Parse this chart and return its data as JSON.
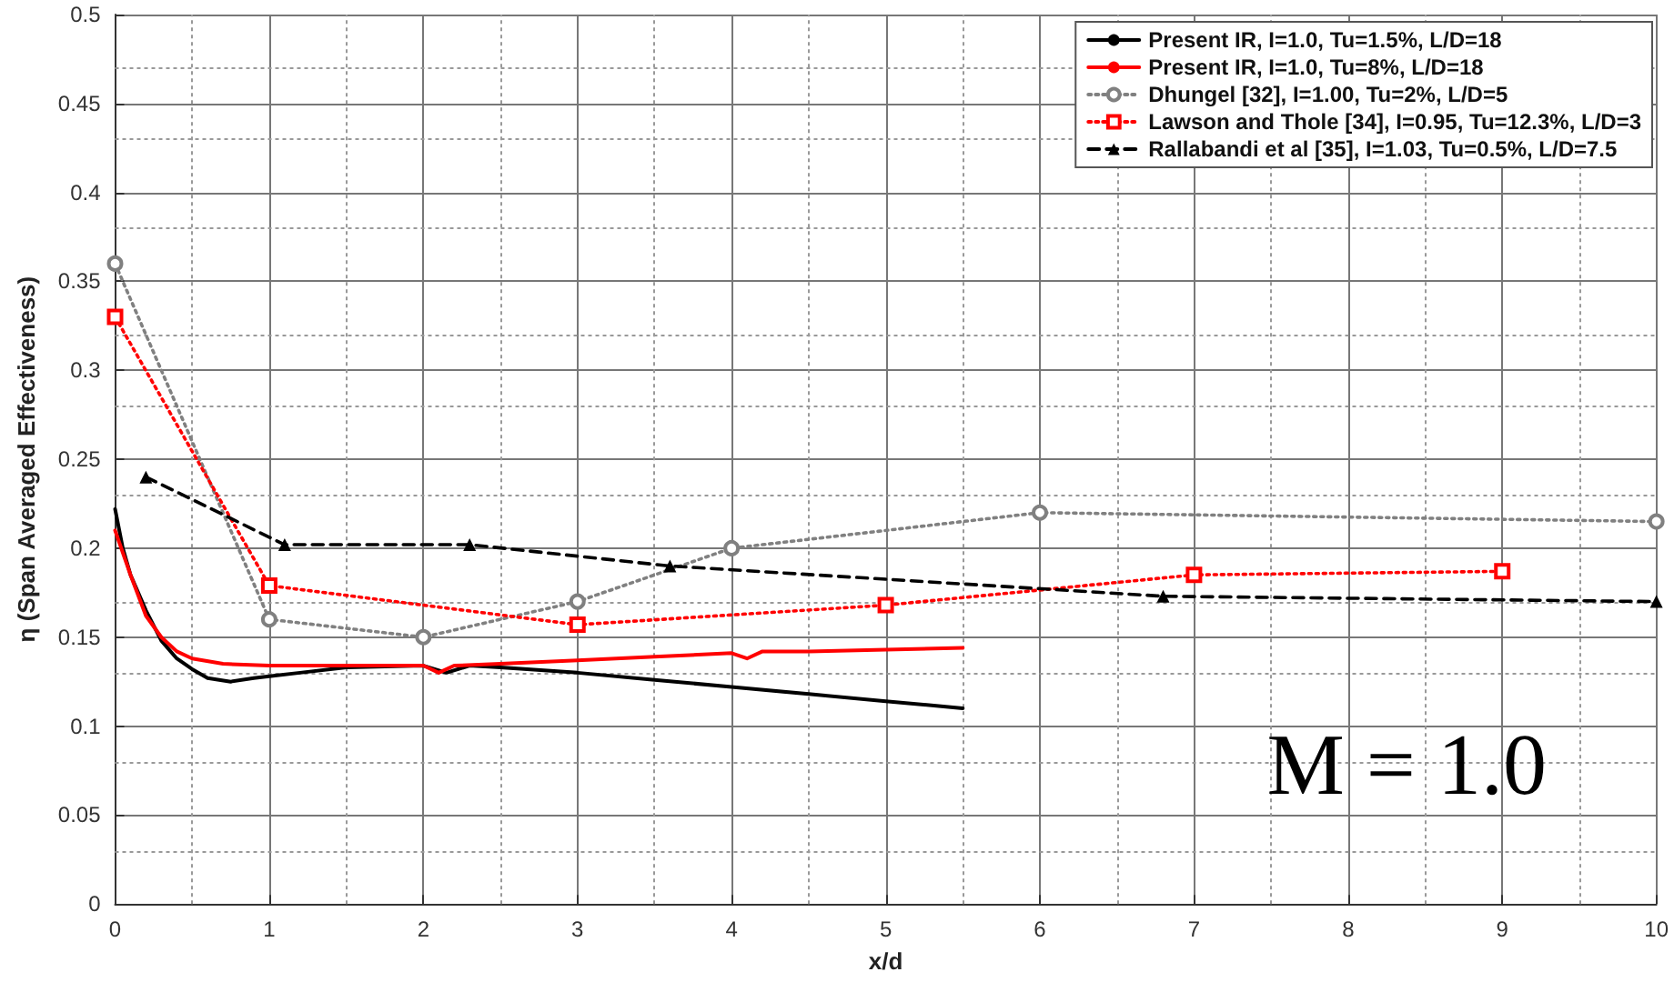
{
  "chart_data": {
    "type": "line",
    "xlabel": "x/d",
    "ylabel": "η (Span Averaged Effectiveness)",
    "xlim": [
      0,
      10
    ],
    "xticks": [
      0,
      1,
      2,
      3,
      4,
      5,
      6,
      7,
      8,
      9,
      10
    ],
    "ylim": [
      0,
      0.5
    ],
    "yticks": [
      0,
      0.05,
      0.1,
      0.15,
      0.2,
      0.25,
      0.3,
      0.35,
      0.4,
      0.45,
      0.5
    ],
    "grid": true,
    "legend": "top right",
    "annotations": [
      "M = 1.0"
    ],
    "series": [
      {
        "name": "Present IR, I=1.0, Tu=1.5%, L/D=18",
        "color": "#000000",
        "line_style": "solid",
        "marker": "none",
        "x": [
          0,
          0.05,
          0.1,
          0.2,
          0.3,
          0.4,
          0.5,
          0.6,
          0.75,
          0.9,
          1.0,
          1.2,
          1.5,
          2.0,
          2.15,
          2.3,
          2.5,
          3.0,
          3.5,
          4.0,
          4.5,
          5.0,
          5.5
        ],
        "values": [
          0.222,
          0.2,
          0.185,
          0.165,
          0.148,
          0.138,
          0.132,
          0.127,
          0.125,
          0.127,
          0.128,
          0.13,
          0.133,
          0.134,
          0.13,
          0.134,
          0.133,
          0.13,
          0.126,
          0.122,
          0.118,
          0.114,
          0.11
        ]
      },
      {
        "name": "Present IR, I=1.0, Tu=8%, L/D=18",
        "color": "#ff0000",
        "line_style": "solid",
        "marker": "none",
        "x": [
          0,
          0.1,
          0.2,
          0.3,
          0.4,
          0.5,
          0.7,
          1.0,
          1.5,
          2.0,
          2.1,
          2.2,
          2.5,
          3.0,
          3.5,
          4.0,
          4.1,
          4.2,
          4.5,
          5.0,
          5.5
        ],
        "values": [
          0.21,
          0.185,
          0.162,
          0.15,
          0.142,
          0.138,
          0.135,
          0.134,
          0.134,
          0.134,
          0.13,
          0.134,
          0.135,
          0.137,
          0.139,
          0.141,
          0.138,
          0.142,
          0.142,
          0.143,
          0.144
        ]
      },
      {
        "name": "Dhungel [32], I=1.00, Tu=2%, L/D=5",
        "color": "#808080",
        "line_style": "dotted",
        "marker": "circle",
        "x": [
          0,
          1,
          2,
          3,
          4,
          6,
          10
        ],
        "values": [
          0.36,
          0.16,
          0.15,
          0.17,
          0.2,
          0.22,
          0.215
        ]
      },
      {
        "name": "Lawson and Thole [34], I=0.95, Tu=12.3%, L/D=3",
        "color": "#ff0000",
        "line_style": "dotted",
        "marker": "square",
        "x": [
          0,
          1,
          3,
          5,
          7,
          9
        ],
        "values": [
          0.33,
          0.179,
          0.157,
          0.168,
          0.185,
          0.187
        ]
      },
      {
        "name": "Rallabandi et al [35], I=1.03, Tu=0.5%, L/D=7.5",
        "color": "#000000",
        "line_style": "dashed",
        "marker": "triangle",
        "x": [
          0.2,
          1.1,
          2.3,
          3.6,
          6.8,
          10
        ],
        "values": [
          0.24,
          0.202,
          0.202,
          0.19,
          0.173,
          0.17
        ]
      }
    ]
  }
}
